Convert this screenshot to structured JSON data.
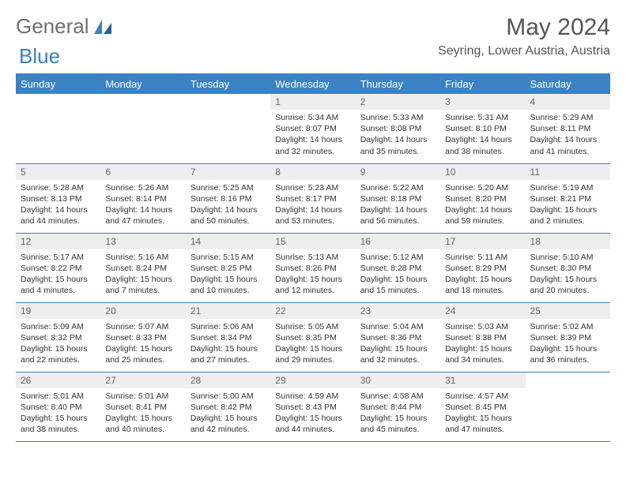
{
  "logo": {
    "general": "General",
    "blue": "Blue"
  },
  "title": "May 2024",
  "location": "Seyring, Lower Austria, Austria",
  "colors": {
    "header_bg": "#3a82c4",
    "header_text": "#ffffff",
    "divider": "#3a7fc3",
    "daynum_bg": "#eeeeee",
    "text": "#333333"
  },
  "weekdays": [
    "Sunday",
    "Monday",
    "Tuesday",
    "Wednesday",
    "Thursday",
    "Friday",
    "Saturday"
  ],
  "weeks": [
    [
      null,
      null,
      null,
      {
        "n": "1",
        "sr": "5:34 AM",
        "ss": "8:07 PM",
        "dl": "14 hours and 32 minutes."
      },
      {
        "n": "2",
        "sr": "5:33 AM",
        "ss": "8:08 PM",
        "dl": "14 hours and 35 minutes."
      },
      {
        "n": "3",
        "sr": "5:31 AM",
        "ss": "8:10 PM",
        "dl": "14 hours and 38 minutes."
      },
      {
        "n": "4",
        "sr": "5:29 AM",
        "ss": "8:11 PM",
        "dl": "14 hours and 41 minutes."
      }
    ],
    [
      {
        "n": "5",
        "sr": "5:28 AM",
        "ss": "8:13 PM",
        "dl": "14 hours and 44 minutes."
      },
      {
        "n": "6",
        "sr": "5:26 AM",
        "ss": "8:14 PM",
        "dl": "14 hours and 47 minutes."
      },
      {
        "n": "7",
        "sr": "5:25 AM",
        "ss": "8:16 PM",
        "dl": "14 hours and 50 minutes."
      },
      {
        "n": "8",
        "sr": "5:23 AM",
        "ss": "8:17 PM",
        "dl": "14 hours and 53 minutes."
      },
      {
        "n": "9",
        "sr": "5:22 AM",
        "ss": "8:18 PM",
        "dl": "14 hours and 56 minutes."
      },
      {
        "n": "10",
        "sr": "5:20 AM",
        "ss": "8:20 PM",
        "dl": "14 hours and 59 minutes."
      },
      {
        "n": "11",
        "sr": "5:19 AM",
        "ss": "8:21 PM",
        "dl": "15 hours and 2 minutes."
      }
    ],
    [
      {
        "n": "12",
        "sr": "5:17 AM",
        "ss": "8:22 PM",
        "dl": "15 hours and 4 minutes."
      },
      {
        "n": "13",
        "sr": "5:16 AM",
        "ss": "8:24 PM",
        "dl": "15 hours and 7 minutes."
      },
      {
        "n": "14",
        "sr": "5:15 AM",
        "ss": "8:25 PM",
        "dl": "15 hours and 10 minutes."
      },
      {
        "n": "15",
        "sr": "5:13 AM",
        "ss": "8:26 PM",
        "dl": "15 hours and 12 minutes."
      },
      {
        "n": "16",
        "sr": "5:12 AM",
        "ss": "8:28 PM",
        "dl": "15 hours and 15 minutes."
      },
      {
        "n": "17",
        "sr": "5:11 AM",
        "ss": "8:29 PM",
        "dl": "15 hours and 18 minutes."
      },
      {
        "n": "18",
        "sr": "5:10 AM",
        "ss": "8:30 PM",
        "dl": "15 hours and 20 minutes."
      }
    ],
    [
      {
        "n": "19",
        "sr": "5:09 AM",
        "ss": "8:32 PM",
        "dl": "15 hours and 22 minutes."
      },
      {
        "n": "20",
        "sr": "5:07 AM",
        "ss": "8:33 PM",
        "dl": "15 hours and 25 minutes."
      },
      {
        "n": "21",
        "sr": "5:06 AM",
        "ss": "8:34 PM",
        "dl": "15 hours and 27 minutes."
      },
      {
        "n": "22",
        "sr": "5:05 AM",
        "ss": "8:35 PM",
        "dl": "15 hours and 29 minutes."
      },
      {
        "n": "23",
        "sr": "5:04 AM",
        "ss": "8:36 PM",
        "dl": "15 hours and 32 minutes."
      },
      {
        "n": "24",
        "sr": "5:03 AM",
        "ss": "8:38 PM",
        "dl": "15 hours and 34 minutes."
      },
      {
        "n": "25",
        "sr": "5:02 AM",
        "ss": "8:39 PM",
        "dl": "15 hours and 36 minutes."
      }
    ],
    [
      {
        "n": "26",
        "sr": "5:01 AM",
        "ss": "8:40 PM",
        "dl": "15 hours and 38 minutes."
      },
      {
        "n": "27",
        "sr": "5:01 AM",
        "ss": "8:41 PM",
        "dl": "15 hours and 40 minutes."
      },
      {
        "n": "28",
        "sr": "5:00 AM",
        "ss": "8:42 PM",
        "dl": "15 hours and 42 minutes."
      },
      {
        "n": "29",
        "sr": "4:59 AM",
        "ss": "8:43 PM",
        "dl": "15 hours and 44 minutes."
      },
      {
        "n": "30",
        "sr": "4:58 AM",
        "ss": "8:44 PM",
        "dl": "15 hours and 45 minutes."
      },
      {
        "n": "31",
        "sr": "4:57 AM",
        "ss": "8:45 PM",
        "dl": "15 hours and 47 minutes."
      },
      null
    ]
  ],
  "labels": {
    "sunrise": "Sunrise: ",
    "sunset": "Sunset: ",
    "daylight": "Daylight: "
  }
}
